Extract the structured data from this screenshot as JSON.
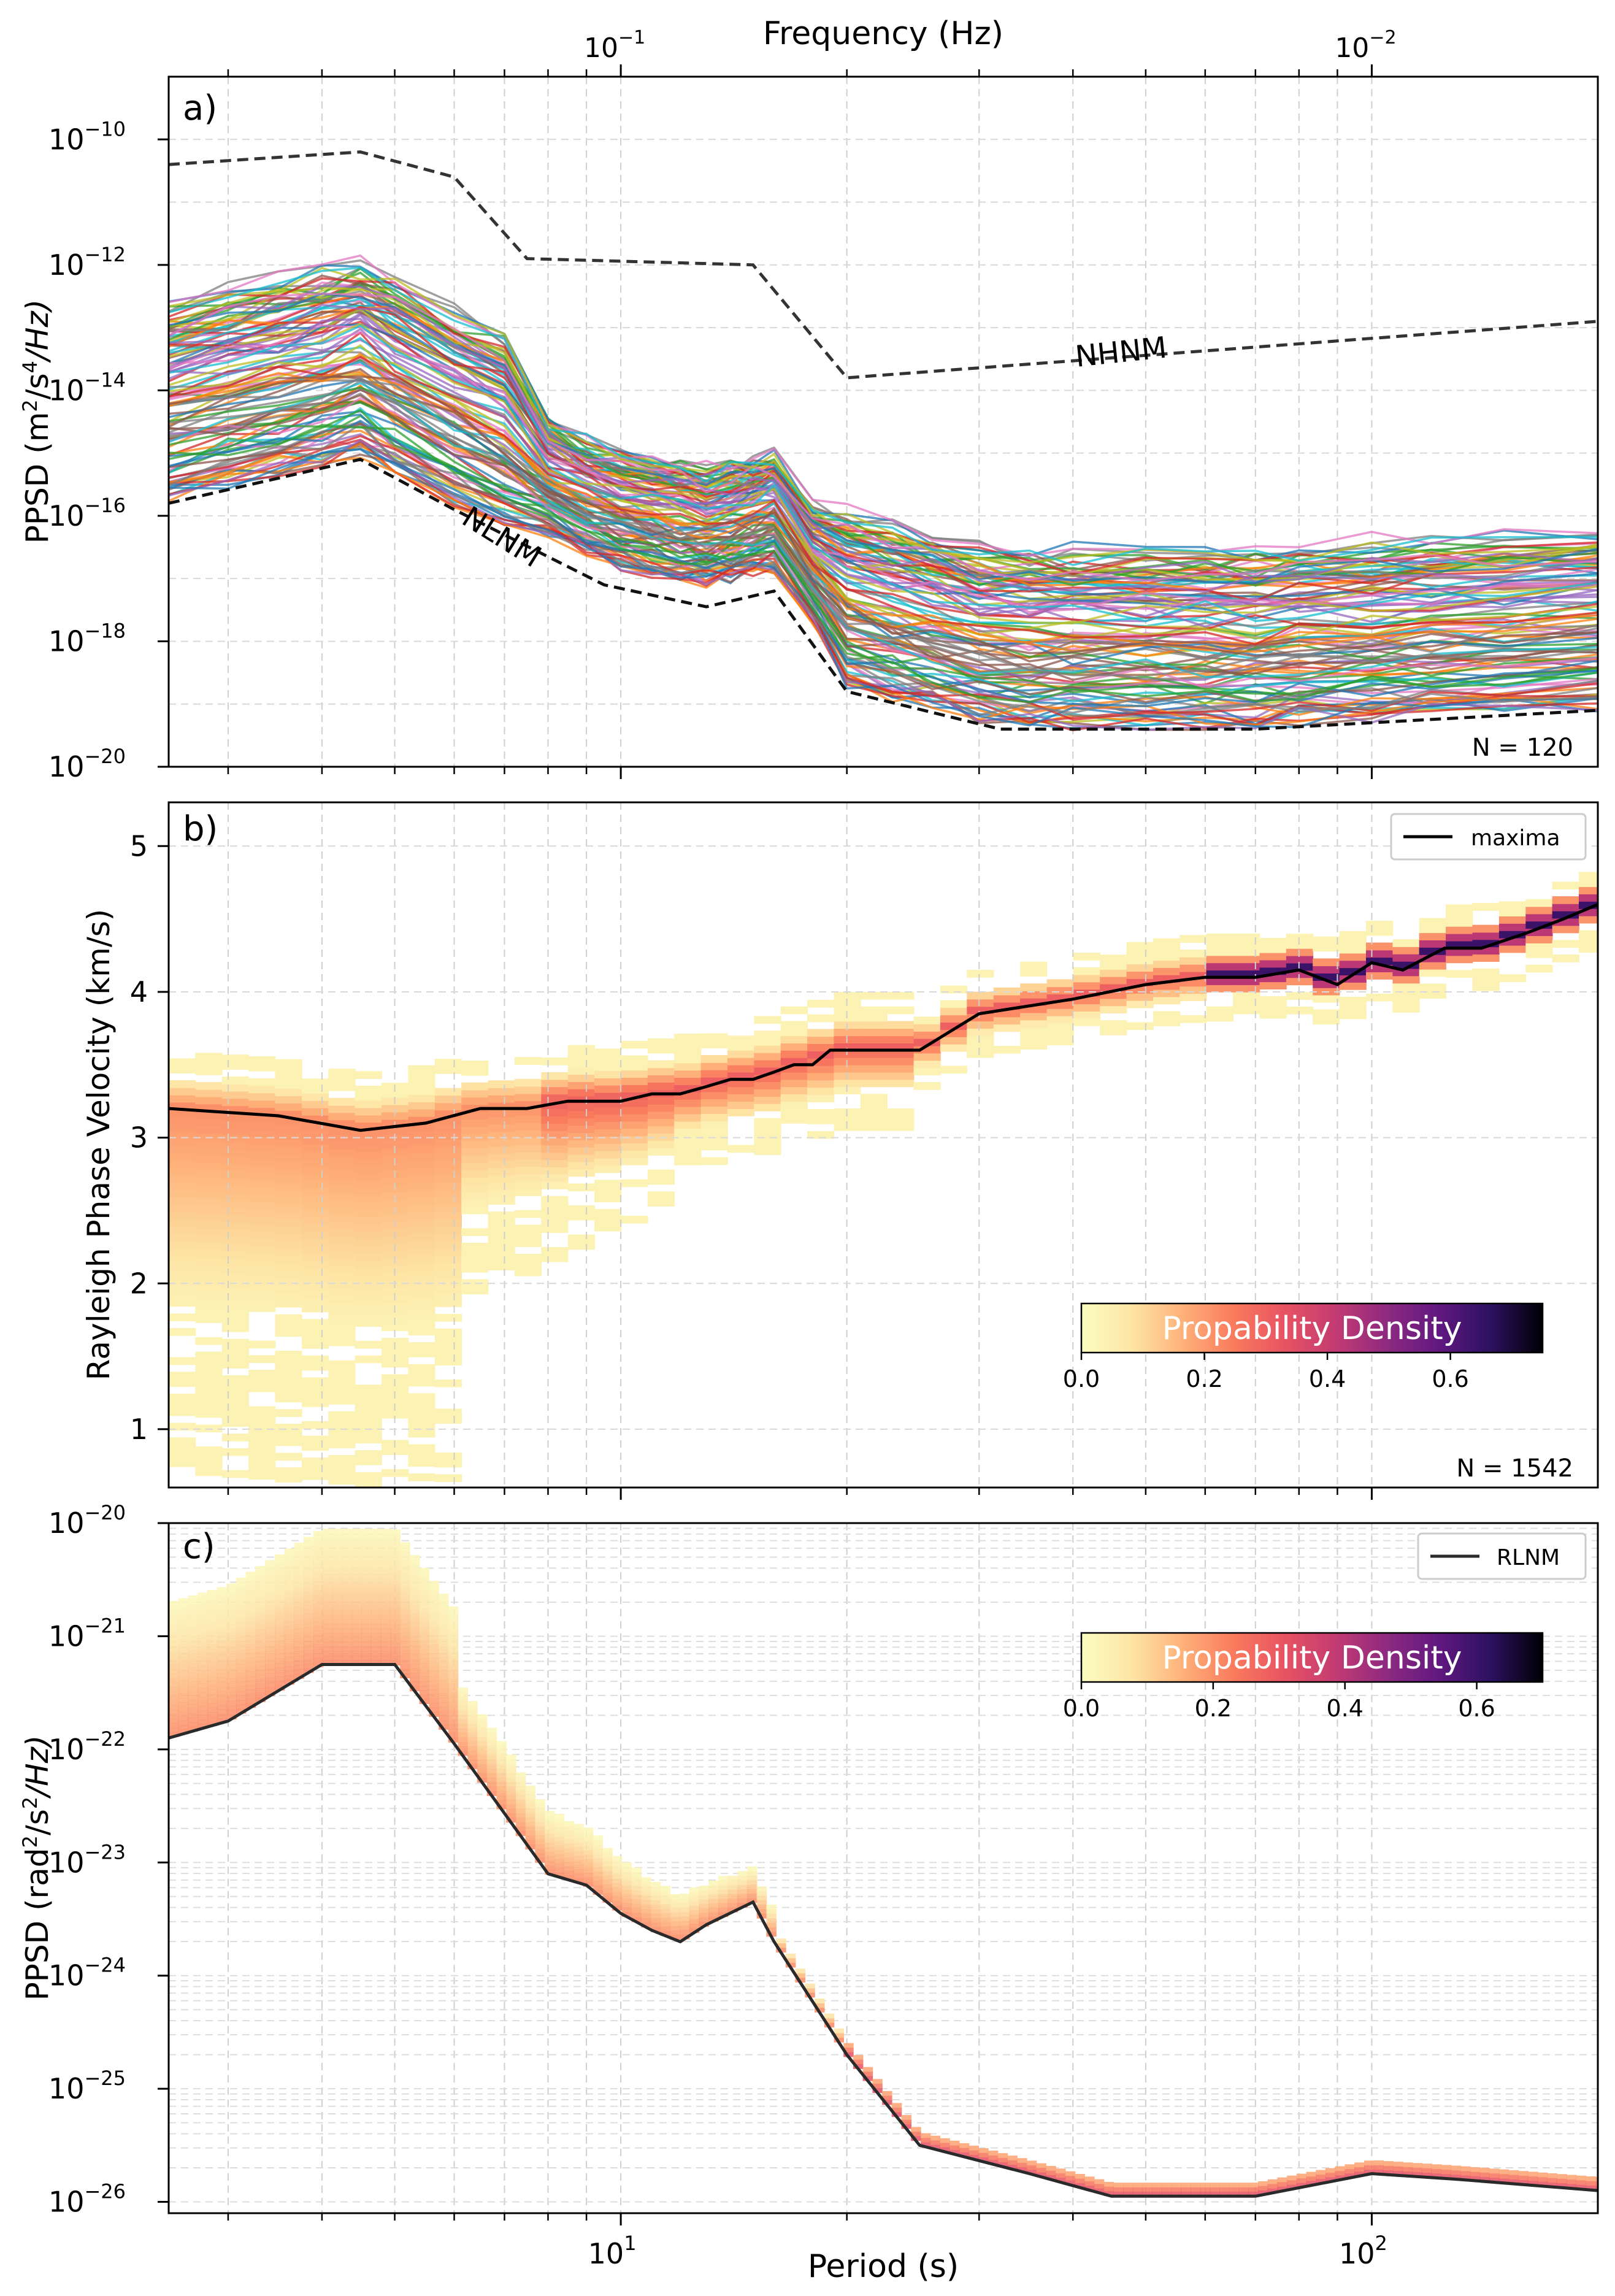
{
  "figure": {
    "top_axis_label": "Frequency (Hz)",
    "top_ticks": [
      {
        "period": 10,
        "base": "10",
        "exp": "−1"
      },
      {
        "period": 100,
        "base": "10",
        "exp": "−2"
      }
    ],
    "bottom_axis_label": "Period (s)",
    "bottom_ticks": [
      {
        "period": 10,
        "base": "10",
        "exp": "1"
      },
      {
        "period": 100,
        "base": "10",
        "exp": "2"
      }
    ],
    "x_scale": "log",
    "xlim": [
      2.5,
      200
    ],
    "grid": "dashed, on"
  },
  "colors": {
    "noise_model": "#333333",
    "maxima": "#000000",
    "rlnm": "#2a2a2a",
    "magma": [
      "#fcfdbf",
      "#fde4a5",
      "#feb078",
      "#f9795d",
      "#e75263",
      "#c13a73",
      "#8c2981",
      "#5f187f",
      "#2c115f",
      "#000004"
    ],
    "series_palette": [
      "#1f77b4",
      "#ff7f0e",
      "#2ca02c",
      "#d62728",
      "#9467bd",
      "#8c564b",
      "#e377c2",
      "#7f7f7f",
      "#bcbd22",
      "#17becf"
    ]
  },
  "chart_data": [
    {
      "panel": "a)",
      "type": "line",
      "ylabel": {
        "pre": "PPSD (m",
        "sup1": "2",
        "mid": "/s",
        "sup2": "4",
        "post": "/Hz)"
      },
      "y_scale": "log",
      "ylim_exp": [
        -20,
        -9
      ],
      "y_ticks_exp": [
        "−10",
        "−12",
        "−14",
        "−16",
        "−18",
        "−20"
      ],
      "annotation": "N = 120",
      "curve_labels": {
        "nhnm": "NHNM",
        "nlnm": "NLNM"
      },
      "nhnm": {
        "period": [
          2.5,
          4.5,
          6,
          7.5,
          15,
          20,
          200
        ],
        "log10_value": [
          -10.4,
          -10.2,
          -10.6,
          -11.9,
          -12.0,
          -13.8,
          -12.9
        ]
      },
      "nlnm": {
        "period": [
          2.5,
          4.5,
          6,
          9.5,
          13,
          16,
          20,
          32,
          70,
          200
        ],
        "log10_value": [
          -15.8,
          -15.1,
          -15.9,
          -17.1,
          -17.45,
          -17.2,
          -18.8,
          -19.4,
          -19.4,
          -19.1
        ]
      },
      "series_count": 120,
      "curves_note": "120 station PPSD curves"
    },
    {
      "panel": "b)",
      "type": "heatmap",
      "ylabel": "Rayleigh Phase Velocity (km/s)",
      "y_scale": "linear",
      "ylim": [
        0.6,
        5.3
      ],
      "y_ticks": [
        1,
        2,
        3,
        4,
        5
      ],
      "legend": "maxima",
      "legend_position": "top-right",
      "annotation": "N = 1542",
      "colorbar": {
        "label": "Propability Density",
        "ticks": [
          "0.0",
          "0.2",
          "0.4",
          "0.6"
        ],
        "range": [
          0,
          0.75
        ]
      },
      "maxima": {
        "period": [
          2.5,
          3.5,
          4.5,
          5.5,
          6.5,
          7.5,
          8.5,
          10,
          11,
          12,
          13,
          14,
          15,
          16,
          17,
          18,
          19,
          20,
          25,
          30,
          40,
          50,
          60,
          70,
          80,
          90,
          100,
          110,
          125,
          140,
          160,
          180,
          200
        ],
        "velocity": [
          3.2,
          3.15,
          3.05,
          3.1,
          3.2,
          3.2,
          3.25,
          3.25,
          3.3,
          3.3,
          3.35,
          3.4,
          3.4,
          3.45,
          3.5,
          3.5,
          3.6,
          3.6,
          3.6,
          3.85,
          3.95,
          4.05,
          4.1,
          4.1,
          4.15,
          4.05,
          4.2,
          4.15,
          4.3,
          4.3,
          4.4,
          4.5,
          4.6
        ]
      }
    },
    {
      "panel": "c)",
      "type": "line",
      "ylabel": {
        "pre": "PPSD (rad",
        "sup1": "2",
        "mid": "/s",
        "sup2": "2",
        "post": "/Hz)"
      },
      "y_scale": "log",
      "ylim_exp": [
        -26.1,
        -20
      ],
      "y_ticks_exp": [
        "−20",
        "−21",
        "−22",
        "−23",
        "−24",
        "−25",
        "−26"
      ],
      "legend": "RLNM",
      "legend_position": "top-right",
      "colorbar": {
        "label": "Propability Density",
        "ticks": [
          "0.0",
          "0.2",
          "0.4",
          "0.6"
        ],
        "range": [
          0,
          0.7
        ]
      },
      "rlnm": {
        "period": [
          2.5,
          3,
          4,
          5,
          6,
          8,
          9,
          10,
          11,
          12,
          13,
          15,
          16,
          20,
          25,
          35,
          45,
          70,
          100,
          130,
          200
        ],
        "log10_value": [
          -21.9,
          -21.75,
          -21.25,
          -21.25,
          -21.95,
          -23.1,
          -23.2,
          -23.45,
          -23.6,
          -23.7,
          -23.55,
          -23.35,
          -23.7,
          -24.7,
          -25.5,
          -25.75,
          -25.95,
          -25.95,
          -25.75,
          -25.8,
          -25.9
        ]
      }
    }
  ]
}
